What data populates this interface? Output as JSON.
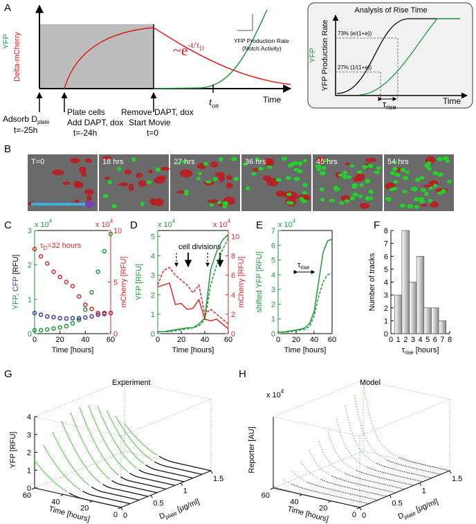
{
  "panel_labels": {
    "a": "A",
    "b": "B",
    "c": "C",
    "d": "D",
    "e": "E",
    "f": "F",
    "g": "G",
    "h": "H"
  },
  "panel_a": {
    "y_label_yfp": "YFP",
    "y_label_delta": "Delta-mCherry",
    "decay": {
      "base": "~e",
      "exp": "-t/τ",
      "exp_sub": "D"
    },
    "production_rate": "YFP Production Rate",
    "notch": "(Notch Activity)",
    "t_on": {
      "base": "t",
      "sub": "on"
    },
    "time": "Time",
    "step1": {
      "line1": "Adsorb D",
      "line1_sub": "plate",
      "line2": "t=-25h"
    },
    "step2": {
      "line1": "Plate cells",
      "line2": "Add DAPT, dox",
      "line3": "t=-24h"
    },
    "step3": {
      "line1": "Remove DAPT, dox",
      "line2": "Start Movie",
      "line3": "t=0"
    }
  },
  "panel_a_inset": {
    "title": "Analysis of Rise Time",
    "y_label_yfp": "YFP",
    "y_label_rate": "YFP Production Rate",
    "level_high": "73% (e/(1+e))",
    "level_low": "27% (1/(1+e))",
    "tau": {
      "base": "τ",
      "sub": "rise"
    },
    "time": "Time"
  },
  "panel_b": {
    "frames": [
      "T=0",
      "18 hrs",
      "27 hrs",
      "36 hrs",
      "45 hrs",
      "54 hrs"
    ]
  },
  "chart_data": [
    {
      "type": "line",
      "marker": true,
      "x": [
        0,
        5,
        10,
        15,
        20,
        25,
        30,
        35,
        40,
        45,
        50,
        55,
        60
      ],
      "xlim": [
        0,
        60
      ],
      "xticks": [
        0,
        20,
        40,
        60
      ],
      "xlabel": "Time [hours]",
      "ylim": [
        0,
        3
      ],
      "yticks": [
        0,
        1,
        2,
        3
      ],
      "ycolor": "#1a9a3a",
      "y2lim": [
        0,
        10
      ],
      "y2ticks": [
        0,
        5,
        10
      ],
      "y2color": "#d62728",
      "y_multiplier": {
        "base": "x 10",
        "exp": "4"
      },
      "y2_multiplier": {
        "base": "x 10",
        "exp": "4"
      },
      "ylabel": [
        {
          "text": "YFP, ",
          "color": "#1a9a3a"
        },
        {
          "text": "CFP",
          "color": "#3a3ab0"
        },
        {
          "text": " [RFU]",
          "color": "#000000"
        }
      ],
      "y2label": "mCherry [RFU]",
      "annotation": {
        "base": "τ",
        "sub": "D",
        "rest": "=32 hours",
        "color": "#d62728"
      },
      "series": [
        {
          "color": "#1a9a3a",
          "values": [
            0.1,
            0.1,
            0.12,
            0.15,
            0.18,
            0.22,
            0.3,
            0.4,
            0.7,
            1.2,
            1.8,
            2.4,
            2.9
          ]
        },
        {
          "color": "#3a3ab0",
          "values": [
            0.6,
            0.55,
            0.5,
            0.48,
            0.45,
            0.44,
            0.45,
            0.45,
            0.47,
            0.5,
            0.55,
            0.6,
            0.6
          ]
        },
        {
          "color": "#d62728",
          "axis": "y2",
          "values": [
            8.2,
            7.5,
            6.8,
            6,
            5.5,
            5,
            4.6,
            3.6,
            2.8,
            2.4,
            2,
            1.9,
            2
          ]
        }
      ]
    },
    {
      "type": "line",
      "marker": false,
      "x": [
        0,
        5,
        10,
        15,
        20,
        25,
        30,
        35,
        40,
        45,
        50,
        55,
        60
      ],
      "xlim": [
        0,
        60
      ],
      "xticks": [
        0,
        20,
        40,
        60
      ],
      "xlabel": "Time [hours]",
      "ylim": [
        0,
        5.3
      ],
      "yticks": [
        0,
        1,
        2,
        3,
        4,
        5
      ],
      "ycolor": "#1a9a3a",
      "y2lim": [
        0,
        10.6
      ],
      "y2ticks": [
        0,
        2,
        4,
        6,
        8,
        10
      ],
      "y2color": "#d62728",
      "y_multiplier": {
        "base": "x 10",
        "exp": "4"
      },
      "y2_multiplier": {
        "base": "x 10",
        "exp": "4"
      },
      "ylabel": [
        {
          "text": "YFP [RFU]",
          "color": "#1a9a3a"
        }
      ],
      "y2label": "mCherry [RFU]",
      "annotation": "cell divisions",
      "series": [
        {
          "color": "#1a9a3a",
          "values": [
            0.1,
            0.1,
            0.15,
            0.2,
            0.25,
            0.3,
            0.3,
            0.5,
            0.8,
            3.3,
            4.2,
            4.8,
            5.1
          ]
        },
        {
          "color": "#1a9a3a",
          "dash": true,
          "values": [
            0.1,
            0.1,
            0.1,
            0.15,
            0.2,
            0.25,
            0.3,
            0.4,
            0.7,
            2.5,
            3.5,
            4.3,
            4.9
          ]
        },
        {
          "color": "#d62728",
          "axis": "y2",
          "values": [
            4.8,
            5,
            5.2,
            3,
            3.1,
            2.5,
            2.6,
            3.5,
            1.5,
            1.3,
            1.5,
            1,
            0.5
          ]
        },
        {
          "color": "#d62728",
          "axis": "y2",
          "dash": true,
          "values": [
            5,
            6.5,
            6.8,
            6,
            5.5,
            5,
            4.2,
            5,
            2,
            2.5,
            2,
            1.5,
            1
          ]
        }
      ]
    },
    {
      "type": "line",
      "marker": false,
      "x": [
        0,
        5,
        10,
        15,
        20,
        25,
        30,
        35,
        40,
        45,
        50,
        55,
        60
      ],
      "xlim": [
        0,
        60
      ],
      "xticks": [
        0,
        20,
        40,
        60
      ],
      "xlabel": "Time [hours]",
      "ylim": [
        0,
        7
      ],
      "yticks": [
        0,
        1,
        2,
        3,
        4,
        5,
        6,
        7
      ],
      "ycolor": "#1a9a3a",
      "y_multiplier": {
        "base": "x 10",
        "exp": "4"
      },
      "ylabel": [
        {
          "text": "shifted YFP [RFU]",
          "color": "#1a9a3a"
        }
      ],
      "annotation": {
        "base": "τ",
        "sub": "rise"
      },
      "series": [
        {
          "color": "#1a9a3a",
          "values": [
            0.1,
            0.1,
            0.15,
            0.2,
            0.25,
            0.3,
            0.4,
            0.7,
            1.5,
            3.5,
            5.5,
            6.3,
            6.4
          ]
        },
        {
          "color": "#1a9a3a",
          "dash": true,
          "values": [
            0.1,
            0.1,
            0.1,
            0.15,
            0.2,
            0.25,
            0.3,
            0.5,
            1.2,
            2.5,
            3.5,
            4,
            4.1
          ]
        }
      ]
    },
    {
      "type": "bar",
      "x": [
        1,
        2,
        3,
        4,
        5,
        6,
        7
      ],
      "values": [
        3,
        8,
        4,
        6,
        2,
        2,
        1
      ],
      "color": "#8c8c8c",
      "xlim": [
        0,
        8
      ],
      "xticks": [
        0,
        1,
        2,
        3,
        4,
        5,
        6,
        7,
        8
      ],
      "ylim": [
        0,
        8
      ],
      "yticks": [
        0,
        1,
        2,
        3,
        4,
        5,
        6,
        7,
        8
      ],
      "ylabel": [
        {
          "text": "Number of tracks",
          "color": "#000000"
        }
      ],
      "xlabel": {
        "base": "τ",
        "sub": "rise",
        "rest": " [hours]"
      }
    }
  ],
  "panel_g": {
    "title": "Experiment",
    "ylabel": "YFP [RFU]",
    "yticks": [
      0,
      1,
      2,
      3,
      4
    ],
    "ylim": [
      0,
      4
    ],
    "time_label": "Time [hours]",
    "time_ticks": [
      60,
      40,
      20,
      0
    ],
    "time_lim": [
      0,
      60
    ],
    "d_label": {
      "base": "D",
      "sub": "plate",
      "rest": " [μg/ml]"
    },
    "d_ticks": [
      0,
      0.5,
      1,
      1.5
    ],
    "d_lim": [
      0,
      1.5
    ]
  },
  "panel_h": {
    "title": "Model",
    "ylabel": "Reporter [AU]",
    "y_multiplier": {
      "base": "x 10",
      "exp": "4"
    },
    "time_label": "Time [hours]",
    "time_ticks": [
      60,
      40,
      20,
      0
    ],
    "time_lim": [
      0,
      60
    ],
    "d_label": {
      "base": "D",
      "sub": "plate",
      "rest": " [μg/ml]"
    },
    "d_ticks": [
      0,
      0.5,
      1,
      1.5
    ],
    "d_lim": [
      0,
      1.5
    ]
  }
}
